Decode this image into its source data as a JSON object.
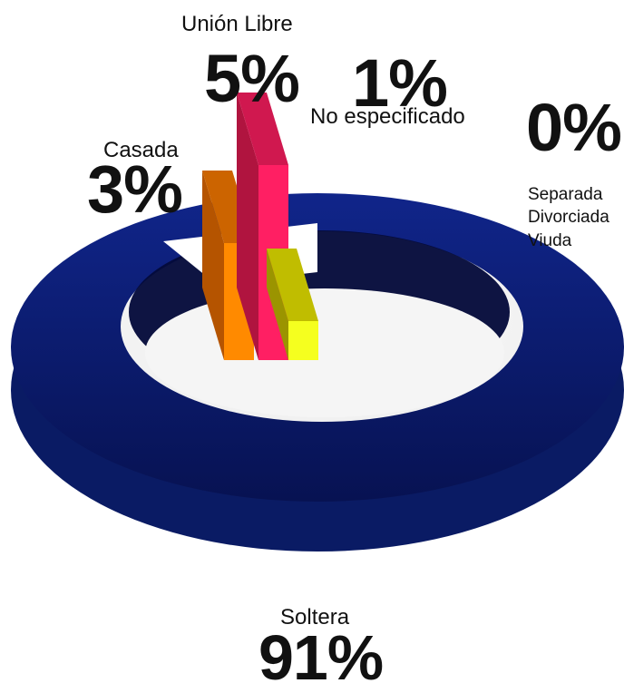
{
  "chart_data": {
    "type": "pie",
    "title": "",
    "slices": [
      {
        "key": "soltera",
        "label": "Soltera",
        "value": 91,
        "display": "91%",
        "color": "#0b1f7a"
      },
      {
        "key": "casada",
        "label": "Casada",
        "value": 3,
        "display": "3%",
        "color": "#ff8a00"
      },
      {
        "key": "union",
        "label": "Unión Libre",
        "value": 5,
        "display": "5%",
        "color": "#ff1f63"
      },
      {
        "key": "noesp",
        "label": "No especificado",
        "value": 1,
        "display": "1%",
        "color": "#f5ff1f"
      },
      {
        "key": "separada",
        "label": "Separada\nDivorciada\nViuda",
        "value": 0,
        "display": "0%",
        "color": "#ffffff"
      }
    ],
    "grid": false,
    "legend": "none"
  }
}
